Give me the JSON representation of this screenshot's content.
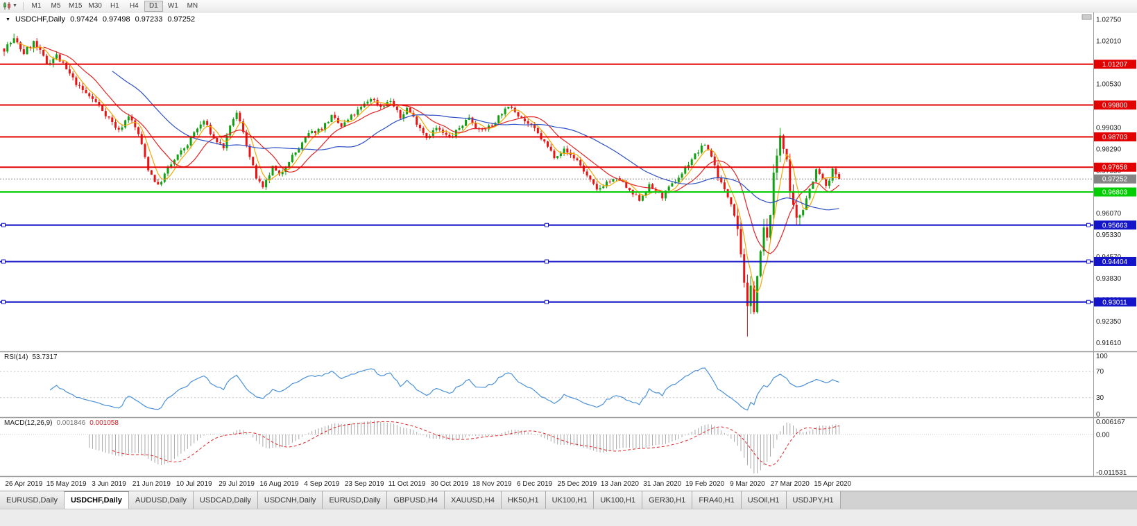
{
  "toolbar": {
    "timeframes": [
      "M1",
      "M5",
      "M15",
      "M30",
      "H1",
      "H4",
      "D1",
      "W1",
      "MN"
    ],
    "active_timeframe": "D1",
    "icons": [
      "candlestick-chart-icon",
      "chevron-down-icon"
    ]
  },
  "tabs": {
    "items": [
      {
        "label": "EURUSD,Daily",
        "active": false
      },
      {
        "label": "USDCHF,Daily",
        "active": true
      },
      {
        "label": "AUDUSD,Daily",
        "active": false
      },
      {
        "label": "USDCAD,Daily",
        "active": false
      },
      {
        "label": "USDCNH,Daily",
        "active": false
      },
      {
        "label": "EURUSD,Daily",
        "active": false
      },
      {
        "label": "GBPUSD,H4",
        "active": false
      },
      {
        "label": "XAUUSD,H4",
        "active": false
      },
      {
        "label": "HK50,H1",
        "active": false
      },
      {
        "label": "UK100,H1",
        "active": false
      },
      {
        "label": "UK100,H1",
        "active": false
      },
      {
        "label": "GER30,H1",
        "active": false
      },
      {
        "label": "FRA40,H1",
        "active": false
      },
      {
        "label": "USOil,H1",
        "active": false
      },
      {
        "label": "USDJPY,H1",
        "active": false
      }
    ]
  },
  "chart_data": {
    "type": "candlestick",
    "symbol": "USDCHF",
    "timeframe": "Daily",
    "title": "USDCHF,Daily",
    "quote": {
      "open": "0.97424",
      "high": "0.97498",
      "low": "0.97233",
      "close": "0.97252"
    },
    "current_price": 0.97252,
    "current_price_label": "0.97252",
    "price_axis": {
      "min": 0.9131,
      "max": 1.0299,
      "ticks": [
        "1.02750",
        "1.02010",
        "1.01270",
        "1.00530",
        "0.99790",
        "0.99030",
        "0.98290",
        "0.97550",
        "0.96810",
        "0.96070",
        "0.95330",
        "0.94570",
        "0.93830",
        "0.93090",
        "0.92350",
        "0.91610"
      ]
    },
    "h_lines": [
      {
        "label": "1.01207",
        "color": "#e30000",
        "width": 2,
        "handles": false
      },
      {
        "label": "0.99800",
        "color": "#e30000",
        "width": 2,
        "handles": false
      },
      {
        "label": "0.98703",
        "color": "#e30000",
        "width": 2,
        "handles": false
      },
      {
        "label": "0.97658",
        "color": "#e30000",
        "width": 2,
        "handles": false
      },
      {
        "label": "0.96803",
        "color": "#00ce00",
        "width": 2,
        "handles": false
      },
      {
        "label": "0.95663",
        "color": "#1414c8",
        "width": 2,
        "handles": true
      },
      {
        "label": "0.94404",
        "color": "#1414c8",
        "width": 2,
        "handles": true
      },
      {
        "label": "0.93011",
        "color": "#1414c8",
        "width": 2,
        "handles": true
      }
    ],
    "x_labels": [
      "26 Apr 2019",
      "15 May 2019",
      "3 Jun 2019",
      "21 Jun 2019",
      "10 Jul 2019",
      "29 Jul 2019",
      "16 Aug 2019",
      "4 Sep 2019",
      "23 Sep 2019",
      "11 Oct 2019",
      "30 Oct 2019",
      "18 Nov 2019",
      "6 Dec 2019",
      "25 Dec 2019",
      "13 Jan 2020",
      "31 Jan 2020",
      "19 Feb 2020",
      "9 Mar 2020",
      "27 Mar 2020",
      "15 Apr 2020"
    ],
    "candles": {
      "count": 256,
      "seed": 7,
      "volatility": {
        "base": 0.0016,
        "early": 0.0022,
        "early_end": 20,
        "crash": 0.0048,
        "crash_range": [
          224,
          244
        ]
      },
      "keyframes": [
        [
          0,
          1.0175
        ],
        [
          3,
          1.0205
        ],
        [
          6,
          1.016
        ],
        [
          9,
          1.0195
        ],
        [
          13,
          1.0125
        ],
        [
          16,
          1.015
        ],
        [
          19,
          1.01
        ],
        [
          23,
          1.004
        ],
        [
          28,
          0.999
        ],
        [
          32,
          0.9935
        ],
        [
          35,
          0.989
        ],
        [
          38,
          0.9945
        ],
        [
          41,
          0.988
        ],
        [
          44,
          0.976
        ],
        [
          47,
          0.97
        ],
        [
          50,
          0.976
        ],
        [
          53,
          0.9805
        ],
        [
          56,
          0.9845
        ],
        [
          58,
          0.9885
        ],
        [
          61,
          0.9925
        ],
        [
          64,
          0.9865
        ],
        [
          67,
          0.9835
        ],
        [
          70,
          0.9935
        ],
        [
          71,
          0.995
        ],
        [
          73,
          0.989
        ],
        [
          75,
          0.98
        ],
        [
          77,
          0.973
        ],
        [
          79,
          0.969
        ],
        [
          82,
          0.9765
        ],
        [
          84,
          0.9735
        ],
        [
          87,
          0.979
        ],
        [
          90,
          0.983
        ],
        [
          93,
          0.988
        ],
        [
          97,
          0.99
        ],
        [
          100,
          0.994
        ],
        [
          103,
          0.9905
        ],
        [
          106,
          0.994
        ],
        [
          109,
          0.997
        ],
        [
          112,
          1.0005
        ],
        [
          115,
          0.9975
        ],
        [
          118,
          0.9995
        ],
        [
          121,
          0.9935
        ],
        [
          123,
          0.997
        ],
        [
          126,
          0.992
        ],
        [
          129,
          0.987
        ],
        [
          132,
          0.99
        ],
        [
          136,
          0.9865
        ],
        [
          139,
          0.99
        ],
        [
          142,
          0.994
        ],
        [
          145,
          0.989
        ],
        [
          149,
          0.991
        ],
        [
          152,
          0.9955
        ],
        [
          155,
          0.9975
        ],
        [
          158,
          0.9935
        ],
        [
          162,
          0.9895
        ],
        [
          165,
          0.985
        ],
        [
          168,
          0.9805
        ],
        [
          171,
          0.9825
        ],
        [
          175,
          0.979
        ],
        [
          178,
          0.9735
        ],
        [
          181,
          0.9685
        ],
        [
          184,
          0.9715
        ],
        [
          188,
          0.9725
        ],
        [
          191,
          0.968
        ],
        [
          194,
          0.9655
        ],
        [
          197,
          0.97
        ],
        [
          201,
          0.9665
        ],
        [
          204,
          0.9705
        ],
        [
          207,
          0.9745
        ],
        [
          210,
          0.9795
        ],
        [
          214,
          0.9845
        ],
        [
          216,
          0.9805
        ],
        [
          218,
          0.9735
        ],
        [
          220,
          0.9685
        ],
        [
          222,
          0.9645
        ],
        [
          224,
          0.9565
        ],
        [
          226,
          0.938
        ],
        [
          227,
          0.9265
        ],
        [
          228,
          0.934
        ],
        [
          229,
          0.929
        ],
        [
          230,
          0.939
        ],
        [
          231,
          0.946
        ],
        [
          232,
          0.9555
        ],
        [
          233,
          0.9505
        ],
        [
          234,
          0.9625
        ],
        [
          235,
          0.9725
        ],
        [
          236,
          0.9805
        ],
        [
          237,
          0.988
        ],
        [
          238,
          0.9845
        ],
        [
          239,
          0.979
        ],
        [
          240,
          0.966
        ],
        [
          242,
          0.9575
        ],
        [
          244,
          0.9635
        ],
        [
          246,
          0.969
        ],
        [
          248,
          0.9755
        ],
        [
          250,
          0.9725
        ],
        [
          251,
          0.9695
        ],
        [
          252,
          0.972
        ],
        [
          253,
          0.9755
        ],
        [
          254,
          0.974
        ],
        [
          255,
          0.97252
        ]
      ],
      "spikes": [
        {
          "i": 3,
          "high": 1.0226
        },
        {
          "i": 227,
          "low": 0.9182
        },
        {
          "i": 237,
          "high": 0.9901
        },
        {
          "i": 253,
          "high": 0.9768
        }
      ]
    },
    "moving_averages": [
      {
        "period": 5,
        "color": "#f5a800"
      },
      {
        "period": 13,
        "color": "#e52222"
      },
      {
        "period": 34,
        "color": "#2d4fc4"
      }
    ],
    "colors": {
      "up": "#10a010",
      "down": "#e81414",
      "bg": "#ffffff",
      "axis_text": "#1a1a1a",
      "current": "#858585",
      "separator": "#9a9a9a"
    },
    "rsi": {
      "label": "RSI(14)",
      "value": "53.7317",
      "period": 14,
      "color": "#4a90d9",
      "levels": [
        "100",
        "70",
        "30",
        "0"
      ]
    },
    "macd": {
      "label": "MACD(12,26,9)",
      "value_main": "0.001846",
      "value_signal": "0.001058",
      "fast": 12,
      "slow": 26,
      "signal": 9,
      "hist_color": "#a8a8a8",
      "signal_color": "#e02020",
      "axis": [
        "0.006167",
        "0.00",
        "-0.011531"
      ]
    }
  }
}
